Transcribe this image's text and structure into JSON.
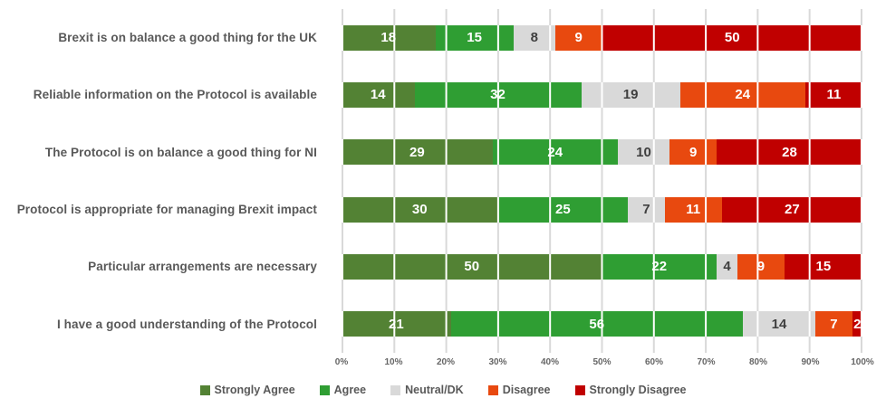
{
  "chart_data": {
    "type": "bar",
    "orientation": "horizontal",
    "stacked": true,
    "unit": "%",
    "title": "",
    "categories": [
      "Brexit is on balance a good thing for the UK",
      "Reliable information on the Protocol is available",
      "The Protocol is on balance a good thing for NI",
      "Protocol is appropriate for managing Brexit impact",
      "Particular arrangements are necessary",
      "I have a good understanding of the Protocol"
    ],
    "series": [
      {
        "name": "Strongly Agree",
        "color": "#538234",
        "text_color": "#ffffff",
        "values": [
          18,
          14,
          29,
          30,
          50,
          21
        ]
      },
      {
        "name": "Agree",
        "color": "#2f9e33",
        "text_color": "#ffffff",
        "values": [
          15,
          32,
          24,
          25,
          22,
          56
        ]
      },
      {
        "name": "Neutral/DK",
        "color": "#d9d9d9",
        "text_color": "#3f3f3f",
        "values": [
          8,
          19,
          10,
          7,
          4,
          14
        ]
      },
      {
        "name": "Disagree",
        "color": "#e8490f",
        "text_color": "#ffffff",
        "values": [
          9,
          24,
          9,
          11,
          9,
          7
        ]
      },
      {
        "name": "Strongly Disagree",
        "color": "#c00000",
        "text_color": "#ffffff",
        "values": [
          50,
          11,
          28,
          27,
          15,
          2
        ]
      }
    ],
    "x_axis": {
      "min": 0,
      "max": 100,
      "ticks": [
        "0%",
        "10%",
        "20%",
        "30%",
        "40%",
        "50%",
        "60%",
        "70%",
        "80%",
        "90%",
        "100%"
      ]
    },
    "legend": {
      "position": "bottom",
      "labels": [
        "Strongly Agree",
        "Agree",
        "Neutral/DK",
        "Disagree",
        "Strongly Disagree"
      ]
    },
    "grid": {
      "vertical": true,
      "color_outside_bars": "#d9d9d9",
      "color_over_bars": "#ffffff"
    },
    "styles": {
      "category_label_color": "#595959",
      "axis_label_color": "#666666",
      "legend_label_color": "#595959",
      "background": "#ffffff"
    }
  }
}
